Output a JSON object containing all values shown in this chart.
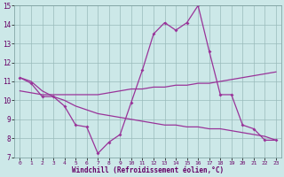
{
  "xlabel": "Windchill (Refroidissement éolien,°C)",
  "xlim": [
    -0.5,
    23.5
  ],
  "ylim": [
    7,
    15
  ],
  "yticks": [
    7,
    8,
    9,
    10,
    11,
    12,
    13,
    14,
    15
  ],
  "xticks": [
    0,
    1,
    2,
    3,
    4,
    5,
    6,
    7,
    8,
    9,
    10,
    11,
    12,
    13,
    14,
    15,
    16,
    17,
    18,
    19,
    20,
    21,
    22,
    23
  ],
  "bg_color": "#cce8e8",
  "line_color": "#993399",
  "grid_color": "#99bbbb",
  "line1_x": [
    0,
    1,
    2,
    3,
    4,
    5,
    6,
    7,
    8,
    9,
    10,
    11,
    12,
    13,
    14,
    15,
    16,
    17,
    18,
    19,
    20,
    21,
    22,
    23
  ],
  "line1_y": [
    11.2,
    10.9,
    10.2,
    10.2,
    9.7,
    8.7,
    8.6,
    7.2,
    7.8,
    8.2,
    9.9,
    11.6,
    13.5,
    14.1,
    13.7,
    14.1,
    15.0,
    12.6,
    10.3,
    10.3,
    8.7,
    8.5,
    7.9,
    7.9
  ],
  "line2_x": [
    0,
    1,
    2,
    3,
    4,
    5,
    6,
    7,
    8,
    9,
    10,
    11,
    12,
    13,
    14,
    15,
    16,
    17,
    18,
    19,
    20,
    21,
    22,
    23
  ],
  "line2_y": [
    10.5,
    10.4,
    10.3,
    10.3,
    10.3,
    10.3,
    10.3,
    10.3,
    10.4,
    10.5,
    10.6,
    10.6,
    10.7,
    10.7,
    10.8,
    10.8,
    10.9,
    10.9,
    11.0,
    11.1,
    11.2,
    11.3,
    11.4,
    11.5
  ],
  "line3_x": [
    0,
    1,
    2,
    3,
    4,
    5,
    6,
    7,
    8,
    9,
    10,
    11,
    12,
    13,
    14,
    15,
    16,
    17,
    18,
    19,
    20,
    21,
    22,
    23
  ],
  "line3_y": [
    11.2,
    11.0,
    10.5,
    10.2,
    10.0,
    9.7,
    9.5,
    9.3,
    9.2,
    9.1,
    9.0,
    8.9,
    8.8,
    8.7,
    8.7,
    8.6,
    8.6,
    8.5,
    8.5,
    8.4,
    8.3,
    8.2,
    8.1,
    7.9
  ]
}
